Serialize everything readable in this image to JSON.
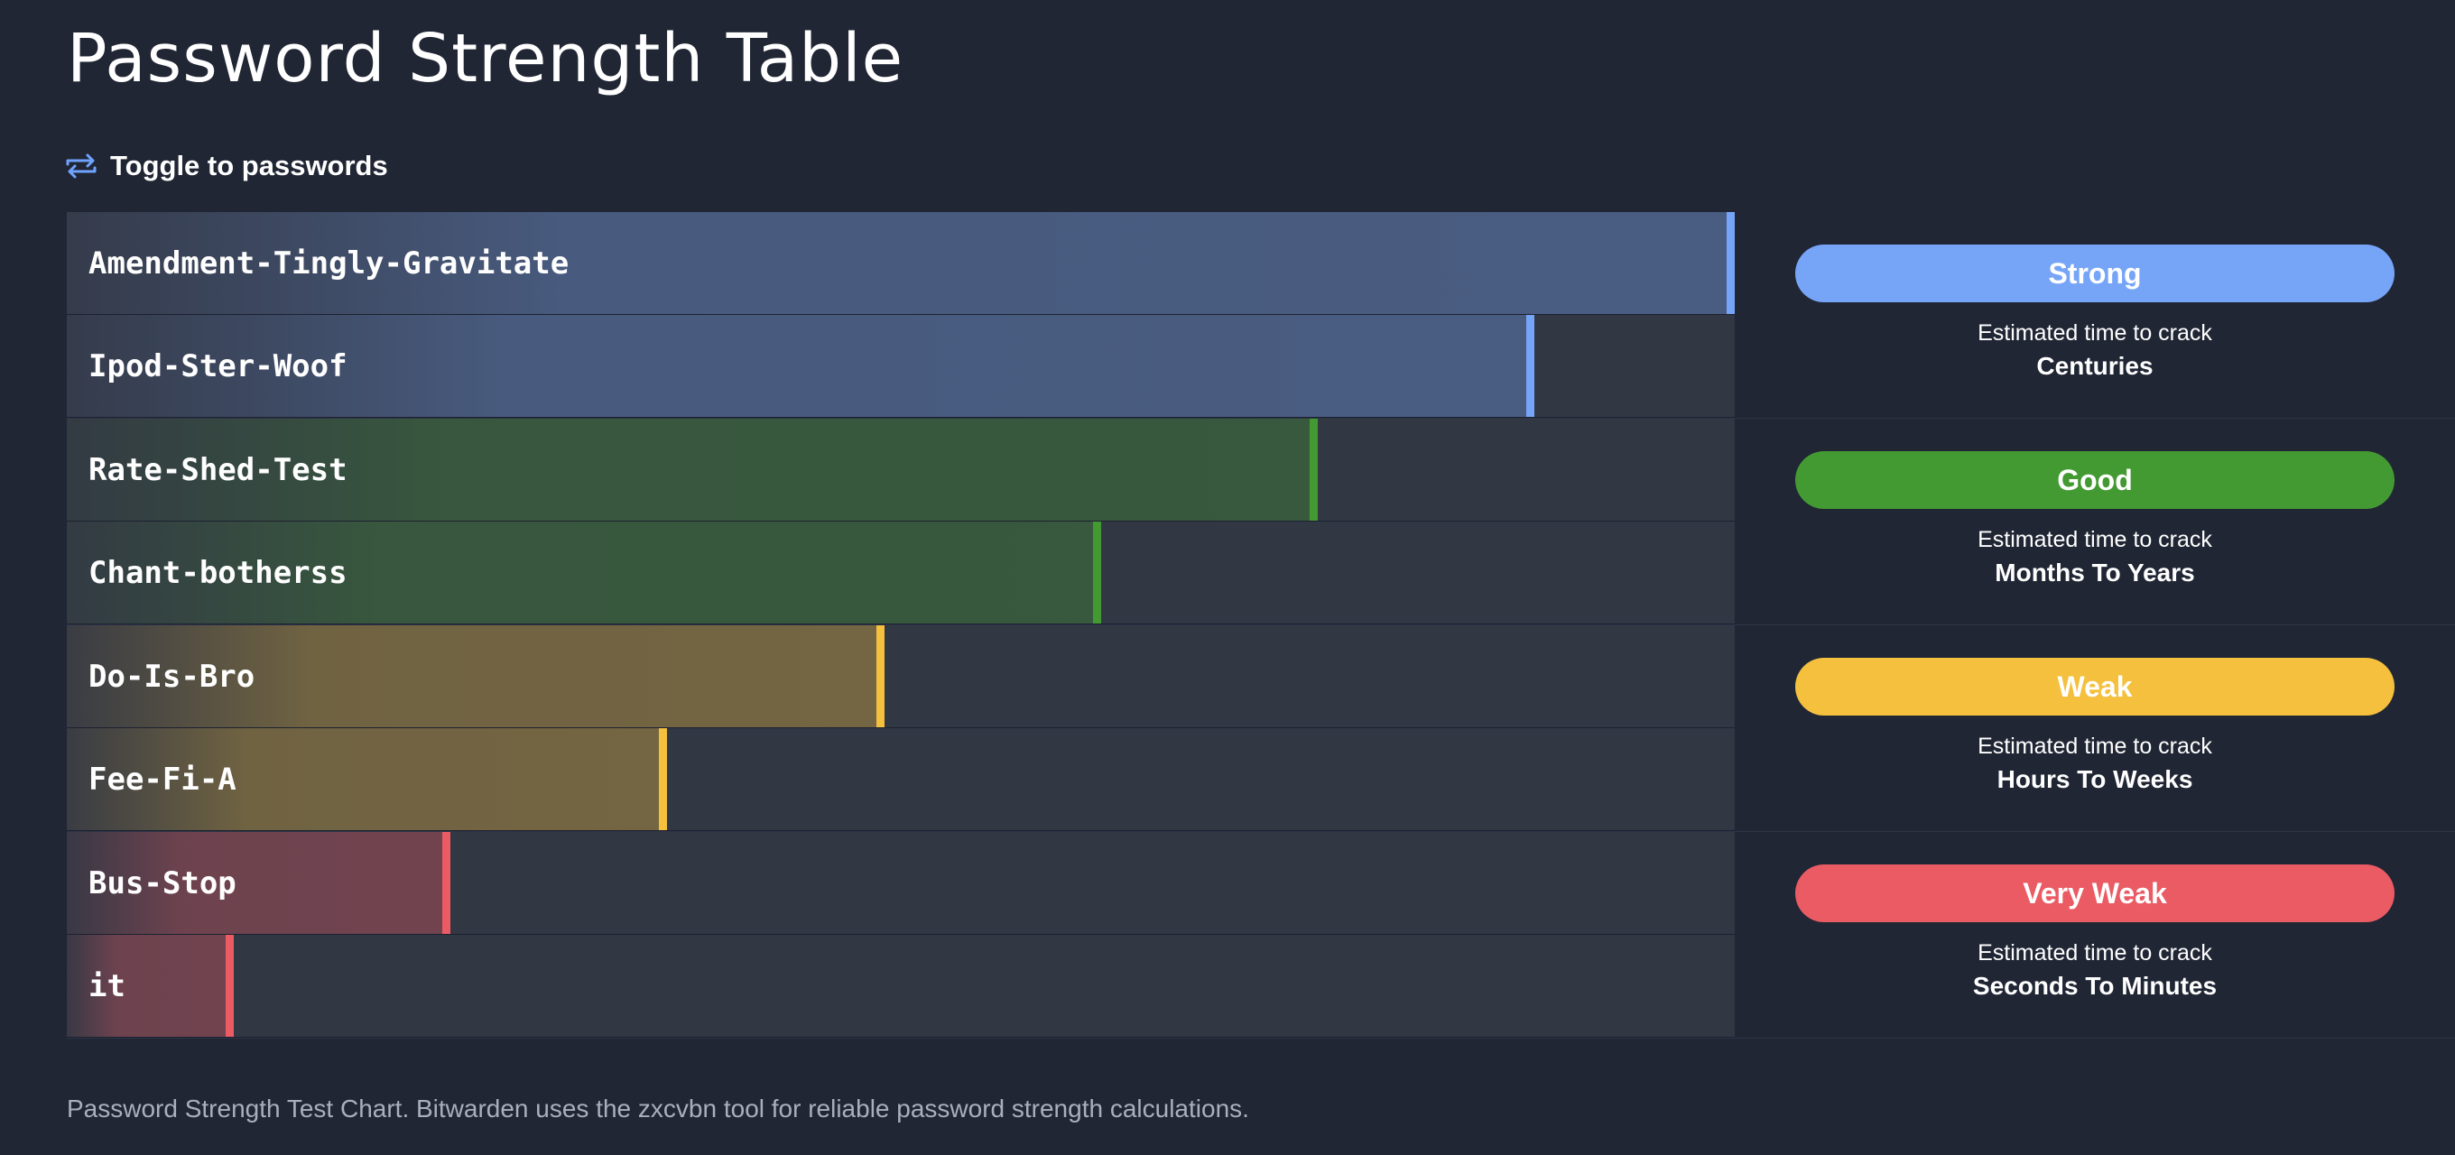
{
  "page": {
    "title": "Password Strength Table",
    "toggle_label": "Toggle to passwords",
    "footer": "Password Strength Test Chart. Bitwarden uses the zxcvbn tool for reliable password strength calculations."
  },
  "groups": [
    {
      "badge": "Strong",
      "color": "#76a5f8",
      "caption": "Estimated time to crack",
      "crack_time": "Centuries",
      "rows": [
        {
          "password": "Amendment-Tingly-Gravitate",
          "strength_pct": 100
        },
        {
          "password": "Ipod-Ster-Woof",
          "strength_pct": 88
        }
      ]
    },
    {
      "badge": "Good",
      "color": "#449a32",
      "caption": "Estimated time to crack",
      "crack_time": "Months To Years",
      "rows": [
        {
          "password": "Rate-Shed-Test",
          "strength_pct": 75
        },
        {
          "password": "Chant-botherss",
          "strength_pct": 62
        }
      ]
    },
    {
      "badge": "Weak",
      "color": "#f4c03d",
      "caption": "Estimated time to crack",
      "crack_time": "Hours To Weeks",
      "rows": [
        {
          "password": "Do-Is-Bro",
          "strength_pct": 49
        },
        {
          "password": "Fee-Fi-A",
          "strength_pct": 36
        }
      ]
    },
    {
      "badge": "Very Weak",
      "color": "#ea5b64",
      "caption": "Estimated time to crack",
      "crack_time": "Seconds To Minutes",
      "rows": [
        {
          "password": "Bus-Stop",
          "strength_pct": 23
        },
        {
          "password": "it",
          "strength_pct": 10
        }
      ]
    }
  ]
}
